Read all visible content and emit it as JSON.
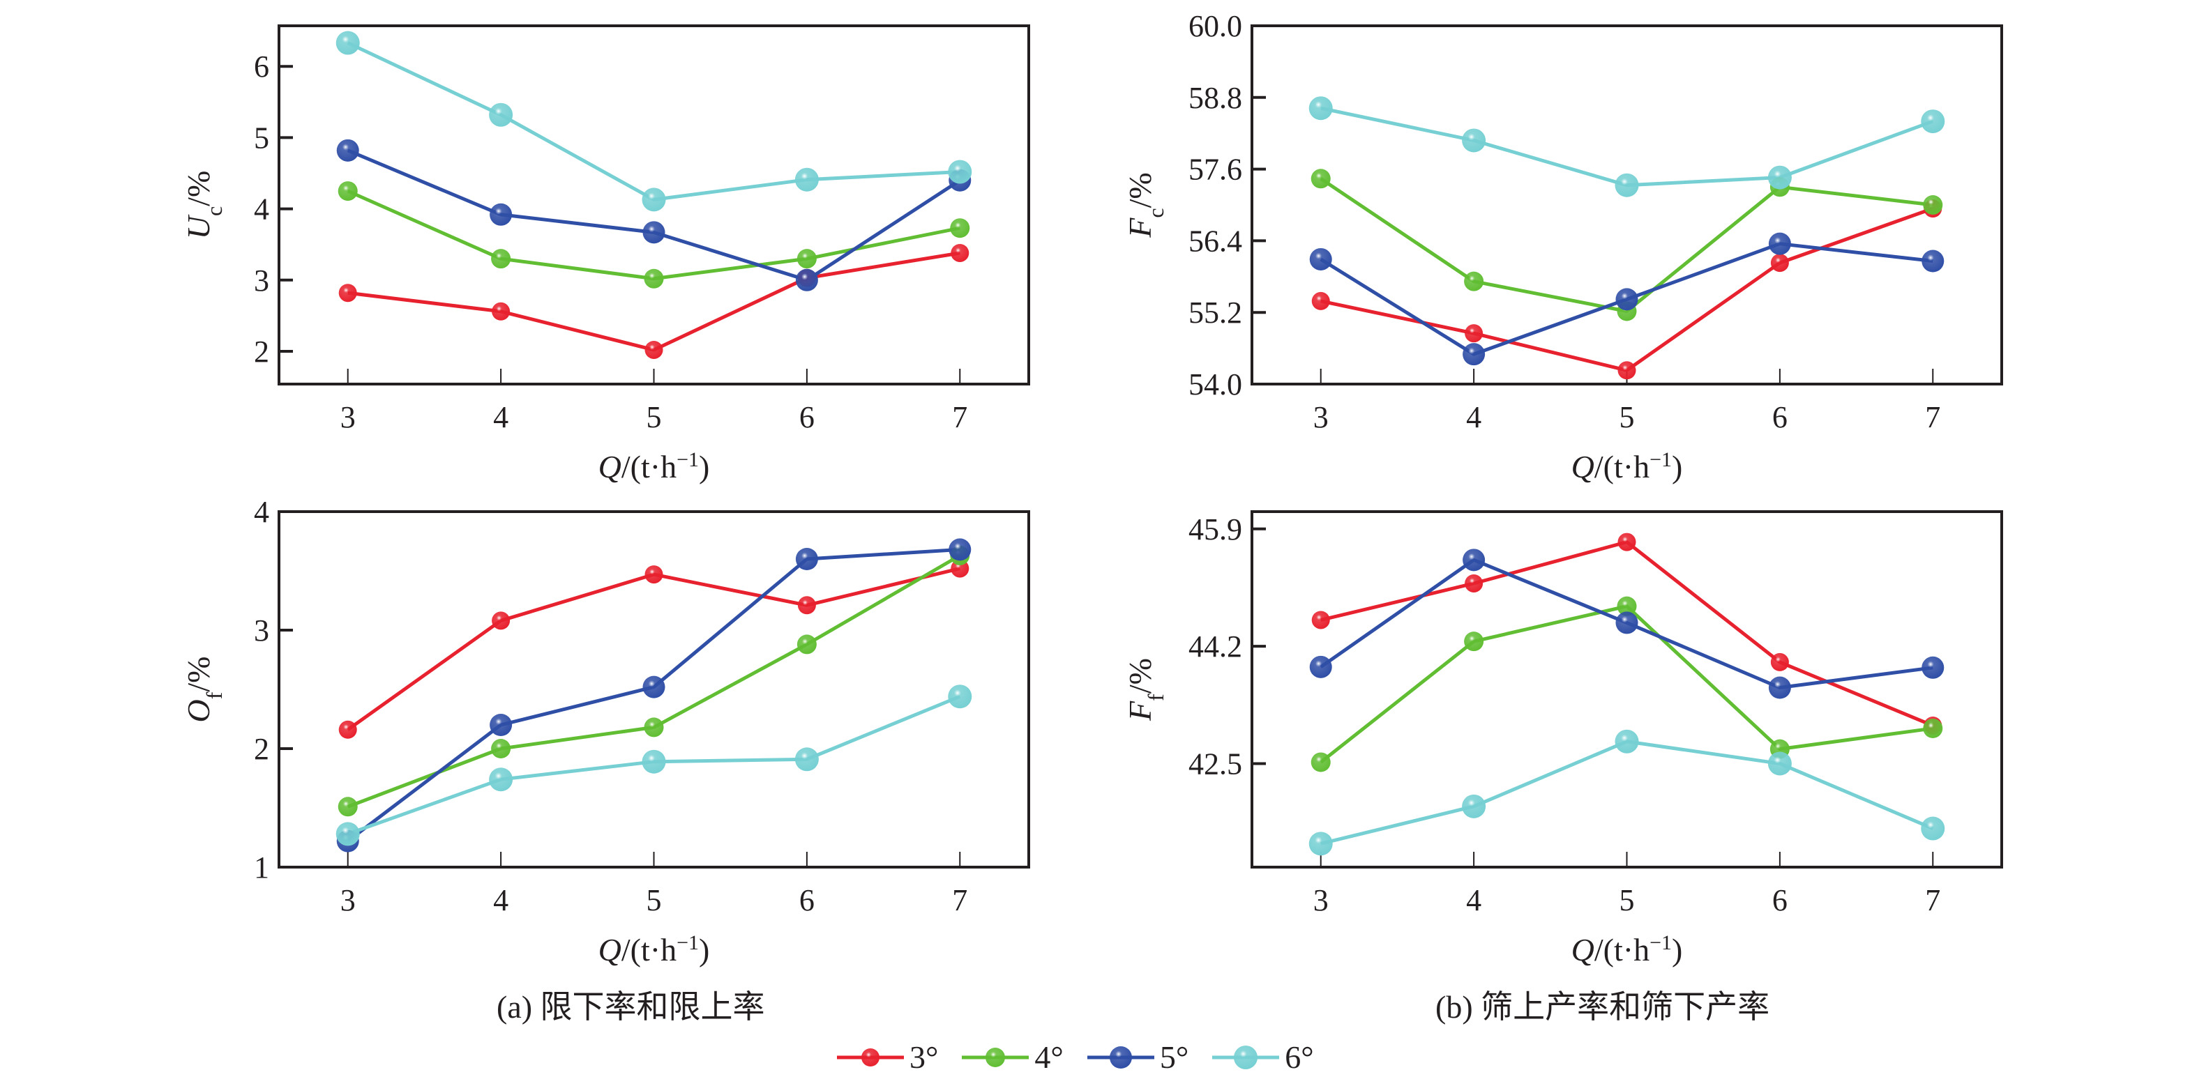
{
  "chart_data": [
    {
      "id": "uc",
      "type": "line",
      "panel": "a",
      "title": "",
      "xlabel": "Q/(t·h⁻¹)",
      "ylabel_main": "U",
      "ylabel_sub": "c",
      "ylabel_unit": "/%",
      "x": [
        3,
        4,
        5,
        6,
        7
      ],
      "xlim": [
        2.55,
        7.45
      ],
      "ylim": [
        1.54,
        6.57
      ],
      "yticks": [
        2,
        3,
        4,
        5,
        6
      ],
      "ytick_labels": [
        "2",
        "3",
        "4",
        "5",
        "6"
      ],
      "grid": false,
      "series": [
        {
          "name": "3°",
          "values": [
            2.82,
            2.56,
            2.02,
            3.03,
            3.38
          ]
        },
        {
          "name": "4°",
          "values": [
            4.25,
            3.3,
            3.02,
            3.3,
            3.73
          ]
        },
        {
          "name": "5°",
          "values": [
            4.82,
            3.92,
            3.67,
            3.0,
            4.4
          ]
        },
        {
          "name": "6°",
          "values": [
            6.33,
            5.32,
            4.13,
            4.41,
            4.52
          ]
        }
      ]
    },
    {
      "id": "fc",
      "type": "line",
      "panel": "b",
      "title": "",
      "xlabel": "Q/(t·h⁻¹)",
      "ylabel_main": "F",
      "ylabel_sub": "c",
      "ylabel_unit": "/%",
      "x": [
        3,
        4,
        5,
        6,
        7
      ],
      "xlim": [
        2.55,
        7.45
      ],
      "ylim": [
        54.0,
        60.0
      ],
      "yticks": [
        54.0,
        55.2,
        56.4,
        57.6,
        58.8,
        60.0
      ],
      "ytick_labels": [
        "54.0",
        "55.2",
        "56.4",
        "57.6",
        "58.8",
        "60.0"
      ],
      "grid": false,
      "series": [
        {
          "name": "3°",
          "values": [
            55.39,
            54.85,
            54.23,
            56.03,
            56.94
          ]
        },
        {
          "name": "4°",
          "values": [
            57.44,
            55.72,
            55.22,
            57.3,
            57.0
          ]
        },
        {
          "name": "5°",
          "values": [
            56.09,
            54.5,
            55.42,
            56.35,
            56.06
          ]
        },
        {
          "name": "6°",
          "values": [
            58.62,
            58.08,
            57.33,
            57.46,
            58.4
          ]
        }
      ]
    },
    {
      "id": "of",
      "type": "line",
      "panel": "a",
      "title": "",
      "xlabel": "Q/(t·h⁻¹)",
      "ylabel_main": "O",
      "ylabel_sub": "f",
      "ylabel_unit": "/%",
      "x": [
        3,
        4,
        5,
        6,
        7
      ],
      "xlim": [
        2.55,
        7.45
      ],
      "ylim": [
        1.0,
        4.0
      ],
      "yticks": [
        1,
        2,
        3,
        4
      ],
      "ytick_labels": [
        "1",
        "2",
        "3",
        "4"
      ],
      "grid": false,
      "series": [
        {
          "name": "3°",
          "values": [
            2.16,
            3.08,
            3.47,
            3.21,
            3.52
          ]
        },
        {
          "name": "4°",
          "values": [
            1.51,
            2.0,
            2.18,
            2.88,
            3.63
          ]
        },
        {
          "name": "5°",
          "values": [
            1.22,
            2.2,
            2.52,
            3.6,
            3.68
          ]
        },
        {
          "name": "6°",
          "values": [
            1.28,
            1.74,
            1.89,
            1.91,
            2.44
          ]
        }
      ]
    },
    {
      "id": "ff",
      "type": "line",
      "panel": "b",
      "title": "",
      "xlabel": "Q/(t·h⁻¹)",
      "ylabel_main": "F",
      "ylabel_sub": "f",
      "ylabel_unit": "/%",
      "x": [
        3,
        4,
        5,
        6,
        7
      ],
      "xlim": [
        2.55,
        7.45
      ],
      "ylim": [
        41.0,
        46.15
      ],
      "yticks": [
        42.5,
        44.2,
        45.9
      ],
      "ytick_labels": [
        "42.5",
        "44.2",
        "45.9"
      ],
      "grid": false,
      "series": [
        {
          "name": "3°",
          "values": [
            44.58,
            45.11,
            45.71,
            43.97,
            43.05
          ]
        },
        {
          "name": "4°",
          "values": [
            42.52,
            44.27,
            44.78,
            42.71,
            43.01
          ]
        },
        {
          "name": "5°",
          "values": [
            43.9,
            45.45,
            44.54,
            43.6,
            43.89
          ]
        },
        {
          "name": "6°",
          "values": [
            41.34,
            41.88,
            42.82,
            42.5,
            41.56
          ]
        }
      ]
    }
  ],
  "series_colors": {
    "3°": "#e8212e",
    "4°": "#61be33",
    "5°": "#2f4ea6",
    "6°": "#76d0d3"
  },
  "captions": {
    "a": "(a) 限下率和限上率",
    "b": "(b) 筛上产率和筛下产率"
  },
  "legend": {
    "placement": "bottom-center",
    "items": [
      "3°",
      "4°",
      "5°",
      "6°"
    ]
  }
}
